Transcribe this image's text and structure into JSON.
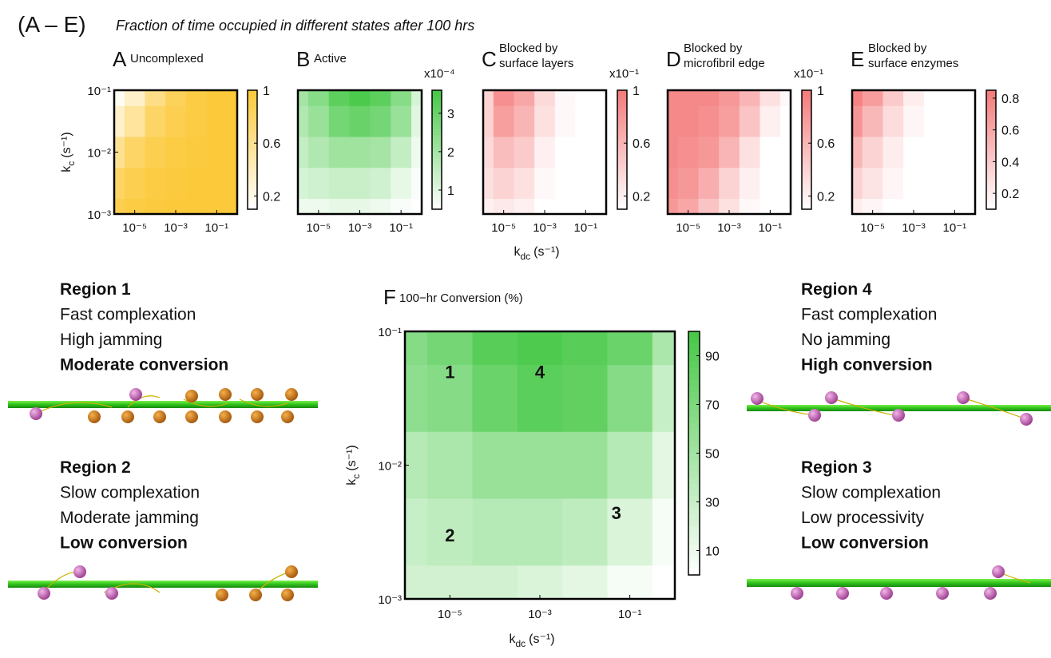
{
  "figure_title": "(A – E)",
  "figure_subtitle": "Fraction of time occupied in different states after 100 hrs",
  "regions": [
    {
      "title": "Region 1",
      "lines": [
        {
          "text": "Fast complexation",
          "color": "#2e8b22",
          "bold": false
        },
        {
          "text": "High jamming",
          "color": "#e8191b",
          "bold": false
        },
        {
          "text": "Moderate conversion",
          "color": "#f07d14",
          "bold": true
        }
      ]
    },
    {
      "title": "Region 2",
      "lines": [
        {
          "text": "Slow complexation",
          "color": "#e8191b",
          "bold": false
        },
        {
          "text": "Moderate jamming",
          "color": "#e8191b",
          "bold": false
        },
        {
          "text": "Low conversion",
          "color": "#e8191b",
          "bold": true
        }
      ]
    },
    {
      "title": "Region 4",
      "lines": [
        {
          "text": "Fast complexation",
          "color": "#2e8b22",
          "bold": false
        },
        {
          "text": "No jamming",
          "color": "#2e8b22",
          "bold": false
        },
        {
          "text": "High conversion",
          "color": "#1d7a16",
          "bold": true
        }
      ]
    },
    {
      "title": "Region 3",
      "lines": [
        {
          "text": "Slow complexation",
          "color": "#e8191b",
          "bold": false
        },
        {
          "text": "Low processivity",
          "color": "#e8191b",
          "bold": false
        },
        {
          "text": "Low conversion",
          "color": "#e8191b",
          "bold": true
        }
      ]
    }
  ],
  "chart_data": [
    {
      "type": "heatmap",
      "panel": "A",
      "title": [
        "Uncomplexed"
      ],
      "color": "#fcc93a",
      "xlim": [
        1e-06,
        1
      ],
      "ylim": [
        0.001,
        0.1
      ],
      "xticks": [
        {
          "value": 1e-05,
          "label": "10⁻⁵"
        },
        {
          "value": 0.001,
          "label": "10⁻³"
        },
        {
          "value": 0.1,
          "label": "10⁻¹"
        }
      ],
      "yticks": [
        {
          "value": 0.001,
          "label": "10⁻³"
        },
        {
          "value": 0.01,
          "label": "10⁻²"
        },
        {
          "value": 0.1,
          "label": "10⁻¹"
        }
      ],
      "ylabel": {
        "symbol": "k",
        "subscript": "c",
        "unit": "(s⁻¹)"
      },
      "x": [
        1e-06,
        1e-05,
        0.0001,
        0.001,
        0.01,
        0.1,
        1
      ],
      "y": [
        0.001,
        0.0032,
        0.01,
        0.032,
        0.1
      ],
      "z": [
        [
          0.9,
          0.95,
          0.98,
          1,
          1,
          1,
          1
        ],
        [
          0.8,
          0.9,
          0.95,
          0.98,
          1,
          1,
          1
        ],
        [
          0.6,
          0.8,
          0.9,
          0.95,
          0.98,
          1,
          1
        ],
        [
          0.35,
          0.55,
          0.8,
          0.9,
          0.95,
          1,
          1
        ],
        [
          0.15,
          0.35,
          0.65,
          0.85,
          0.95,
          1,
          1
        ]
      ],
      "zlim": [
        0.1,
        1
      ],
      "zticks": [
        0.2,
        0.6,
        1
      ]
    },
    {
      "type": "heatmap",
      "panel": "B",
      "title": [
        "Active"
      ],
      "color": "#45c845",
      "colorbar_label": "x10⁻⁴",
      "xlim": [
        1e-06,
        1
      ],
      "ylim": [
        0.001,
        0.1
      ],
      "xticks": [
        {
          "value": 1e-05,
          "label": "10⁻⁵"
        },
        {
          "value": 0.001,
          "label": "10⁻³"
        },
        {
          "value": 0.1,
          "label": "10⁻¹"
        }
      ],
      "x": [
        1e-06,
        1e-05,
        0.0001,
        0.001,
        0.01,
        0.1,
        1
      ],
      "y": [
        0.001,
        0.0032,
        0.01,
        0.032,
        0.1
      ],
      "z": [
        [
          0.8,
          0.8,
          0.9,
          0.9,
          0.8,
          0.6,
          0.5
        ],
        [
          1.2,
          1.3,
          1.4,
          1.4,
          1.3,
          0.9,
          0.6
        ],
        [
          1.5,
          1.8,
          2.1,
          2.1,
          2,
          1.5,
          0.8
        ],
        [
          1.8,
          2.2,
          2.8,
          3,
          2.8,
          2.2,
          1
        ],
        [
          2,
          2.5,
          3.2,
          3.5,
          3.2,
          2.5,
          1.2
        ]
      ],
      "zlim": [
        0.5,
        3.6
      ],
      "zticks": [
        1,
        2,
        3
      ]
    },
    {
      "type": "heatmap",
      "panel": "C",
      "title": [
        "Blocked by",
        "surface layers"
      ],
      "color": "#f47a7a",
      "colorbar_label": "x10⁻¹",
      "xlim": [
        1e-06,
        1
      ],
      "ylim": [
        0.001,
        0.1
      ],
      "xticks": [
        {
          "value": 1e-05,
          "label": "10⁻⁵"
        },
        {
          "value": 0.001,
          "label": "10⁻³"
        },
        {
          "value": 0.1,
          "label": "10⁻¹"
        }
      ],
      "xlabel": {
        "symbol": "k",
        "subscript": "dc",
        "unit": "(s⁻¹)"
      },
      "x": [
        1e-06,
        1e-05,
        0.0001,
        0.001,
        0.01,
        0.1,
        1
      ],
      "y": [
        0.001,
        0.0032,
        0.01,
        0.032,
        0.1
      ],
      "z": [
        [
          0.2,
          0.25,
          0.2,
          0.1,
          0.1,
          0.1,
          0.1
        ],
        [
          0.3,
          0.4,
          0.3,
          0.15,
          0.1,
          0.1,
          0.1
        ],
        [
          0.35,
          0.55,
          0.45,
          0.2,
          0.1,
          0.1,
          0.1
        ],
        [
          0.4,
          0.75,
          0.6,
          0.3,
          0.15,
          0.1,
          0.1
        ],
        [
          0.4,
          0.85,
          0.7,
          0.35,
          0.15,
          0.1,
          0.1
        ]
      ],
      "zlim": [
        0.1,
        1
      ],
      "zticks": [
        0.2,
        0.6,
        1
      ]
    },
    {
      "type": "heatmap",
      "panel": "D",
      "title": [
        "Blocked by",
        "microfibril edge"
      ],
      "color": "#f47a7a",
      "colorbar_label": "x10⁻¹",
      "xlim": [
        1e-06,
        1
      ],
      "ylim": [
        0.001,
        0.1
      ],
      "xticks": [
        {
          "value": 1e-05,
          "label": "10⁻⁵"
        },
        {
          "value": 0.001,
          "label": "10⁻³"
        },
        {
          "value": 0.1,
          "label": "10⁻¹"
        }
      ],
      "x": [
        1e-06,
        1e-05,
        0.0001,
        0.001,
        0.01,
        0.1,
        1
      ],
      "y": [
        0.001,
        0.0032,
        0.01,
        0.032,
        0.1
      ],
      "z": [
        [
          0.8,
          0.7,
          0.5,
          0.3,
          0.15,
          0.1,
          0.1
        ],
        [
          0.85,
          0.8,
          0.65,
          0.4,
          0.2,
          0.1,
          0.1
        ],
        [
          0.9,
          0.85,
          0.8,
          0.6,
          0.3,
          0.1,
          0.1
        ],
        [
          0.9,
          0.9,
          0.85,
          0.75,
          0.5,
          0.2,
          0.1
        ],
        [
          0.9,
          0.9,
          0.9,
          0.8,
          0.6,
          0.3,
          0.15
        ]
      ],
      "zlim": [
        0.1,
        1
      ],
      "zticks": [
        0.2,
        0.6,
        1
      ]
    },
    {
      "type": "heatmap",
      "panel": "E",
      "title": [
        "Blocked by",
        "surface enzymes"
      ],
      "color": "#f47a7a",
      "xlim": [
        1e-06,
        1
      ],
      "ylim": [
        0.001,
        0.1
      ],
      "xticks": [
        {
          "value": 1e-05,
          "label": "10⁻⁵"
        },
        {
          "value": 0.001,
          "label": "10⁻³"
        },
        {
          "value": 0.1,
          "label": "10⁻¹"
        }
      ],
      "x": [
        1e-06,
        1e-05,
        0.0001,
        0.001,
        0.01,
        0.1,
        1
      ],
      "y": [
        0.001,
        0.0032,
        0.01,
        0.032,
        0.1
      ],
      "z": [
        [
          0.2,
          0.15,
          0.1,
          0.1,
          0.1,
          0.1,
          0.1
        ],
        [
          0.35,
          0.25,
          0.15,
          0.1,
          0.1,
          0.1,
          0.1
        ],
        [
          0.5,
          0.35,
          0.2,
          0.1,
          0.1,
          0.1,
          0.1
        ],
        [
          0.7,
          0.5,
          0.3,
          0.15,
          0.1,
          0.1,
          0.1
        ],
        [
          0.8,
          0.65,
          0.4,
          0.2,
          0.1,
          0.1,
          0.1
        ]
      ],
      "zlim": [
        0.1,
        0.85
      ],
      "zticks": [
        0.2,
        0.4,
        0.6,
        0.8
      ]
    },
    {
      "type": "heatmap",
      "panel": "F",
      "title": [
        "100−hr Conversion (%)"
      ],
      "color": "#45c845",
      "xlim": [
        1e-06,
        1
      ],
      "ylim": [
        0.001,
        0.1
      ],
      "xticks": [
        {
          "value": 1e-05,
          "label": "10⁻⁵"
        },
        {
          "value": 0.001,
          "label": "10⁻³"
        },
        {
          "value": 0.1,
          "label": "10⁻¹"
        }
      ],
      "yticks": [
        {
          "value": 0.001,
          "label": "10⁻³"
        },
        {
          "value": 0.01,
          "label": "10⁻²"
        },
        {
          "value": 0.1,
          "label": "10⁻¹"
        }
      ],
      "xlabel": {
        "symbol": "k",
        "subscript": "dc",
        "unit": "(s⁻¹)"
      },
      "ylabel": {
        "symbol": "k",
        "subscript": "c",
        "unit": "(s⁻¹)"
      },
      "x": [
        1e-06,
        1e-05,
        0.0001,
        0.001,
        0.01,
        0.1,
        1
      ],
      "y": [
        0.001,
        0.0032,
        0.01,
        0.032,
        0.1
      ],
      "z": [
        [
          25,
          25,
          25,
          20,
          15,
          5,
          0
        ],
        [
          30,
          35,
          40,
          40,
          35,
          20,
          5
        ],
        [
          40,
          45,
          55,
          55,
          55,
          40,
          15
        ],
        [
          60,
          65,
          80,
          88,
          85,
          65,
          30
        ],
        [
          65,
          75,
          90,
          95,
          90,
          80,
          45
        ]
      ],
      "zlim": [
        0,
        100
      ],
      "zticks": [
        10,
        30,
        50,
        70,
        90
      ],
      "annotations": [
        {
          "text": "1",
          "x": 1e-05,
          "y": 0.05
        },
        {
          "text": "4",
          "x": 0.001,
          "y": 0.05
        },
        {
          "text": "2",
          "x": 1e-05,
          "y": 0.003
        },
        {
          "text": "3",
          "x": 0.05,
          "y": 0.0044
        }
      ]
    }
  ]
}
